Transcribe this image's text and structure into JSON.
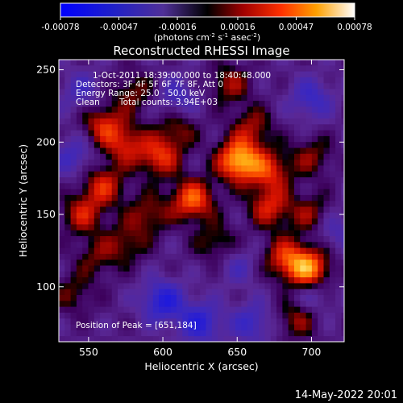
{
  "chart_data": {
    "type": "heatmap",
    "title": "Reconstructed RHESSI Image",
    "xlabel": "Heliocentric X (arcsec)",
    "ylabel": "Heliocentric Y (arcsec)",
    "x_ticks": [
      "550",
      "600",
      "650",
      "700"
    ],
    "y_ticks": [
      "100",
      "150",
      "200",
      "250"
    ],
    "xlim": [
      530,
      722
    ],
    "ylim": [
      62,
      257
    ],
    "colorbar": {
      "ticks": [
        "-0.00078",
        "-0.00047",
        "-0.00016",
        "0.00016",
        "0.00047",
        "0.00078"
      ],
      "label_base": "(photons cm",
      "label_exp1": "-2",
      "label_mid1": " s",
      "label_exp2": "-1",
      "label_mid2": " asec",
      "label_exp3": "-2",
      "label_end": ")",
      "range": [
        -0.00078,
        0.00078
      ]
    },
    "annotations": [
      "1-Oct-2011 18:39:00.000 to 18:40:48.000",
      "Detectors: 3F 4F 5F 6F 7F 8F, Att 0",
      "Energy Range: 25.0 - 50.0 keV",
      "Clean",
      "Total counts: 3.94E+03"
    ],
    "peak_label": "Position of Peak = [651,184]",
    "peak": [
      651,
      184
    ],
    "blobs": [
      {
        "x": 651,
        "y": 187,
        "v": 1.0
      },
      {
        "x": 672,
        "y": 180,
        "v": 0.55
      },
      {
        "x": 698,
        "y": 112,
        "v": 0.9
      },
      {
        "x": 682,
        "y": 120,
        "v": 0.55
      },
      {
        "x": 620,
        "y": 160,
        "v": 0.75
      },
      {
        "x": 598,
        "y": 190,
        "v": 0.6
      },
      {
        "x": 560,
        "y": 170,
        "v": 0.55
      },
      {
        "x": 575,
        "y": 198,
        "v": 0.5
      },
      {
        "x": 546,
        "y": 150,
        "v": 0.5
      },
      {
        "x": 560,
        "y": 212,
        "v": 0.55
      },
      {
        "x": 645,
        "y": 240,
        "v": 0.4
      },
      {
        "x": 672,
        "y": 155,
        "v": 0.55
      },
      {
        "x": 660,
        "y": 210,
        "v": 0.4
      },
      {
        "x": 700,
        "y": 190,
        "v": 0.35
      },
      {
        "x": 636,
        "y": 130,
        "v": 0.35
      },
      {
        "x": 590,
        "y": 150,
        "v": 0.4
      },
      {
        "x": 580,
        "y": 235,
        "v": 0.35
      },
      {
        "x": 555,
        "y": 120,
        "v": 0.3
      },
      {
        "x": 610,
        "y": 210,
        "v": 0.35
      },
      {
        "x": 700,
        "y": 150,
        "v": 0.4
      },
      {
        "x": 540,
        "y": 95,
        "v": 0.3
      },
      {
        "x": 690,
        "y": 78,
        "v": 0.4
      },
      {
        "x": 575,
        "y": 130,
        "v": 0.35
      },
      {
        "x": 600,
        "y": 90,
        "v": -0.6
      },
      {
        "x": 625,
        "y": 75,
        "v": -0.55
      },
      {
        "x": 660,
        "y": 75,
        "v": -0.4
      },
      {
        "x": 540,
        "y": 190,
        "v": -0.35
      },
      {
        "x": 610,
        "y": 230,
        "v": -0.35
      },
      {
        "x": 700,
        "y": 230,
        "v": -0.4
      },
      {
        "x": 715,
        "y": 140,
        "v": -0.3
      },
      {
        "x": 650,
        "y": 115,
        "v": -0.25
      },
      {
        "x": 700,
        "y": 95,
        "v": -0.3
      },
      {
        "x": 545,
        "y": 235,
        "v": -0.3
      }
    ]
  },
  "footer": {
    "date": "14-May-2022 20:01"
  }
}
